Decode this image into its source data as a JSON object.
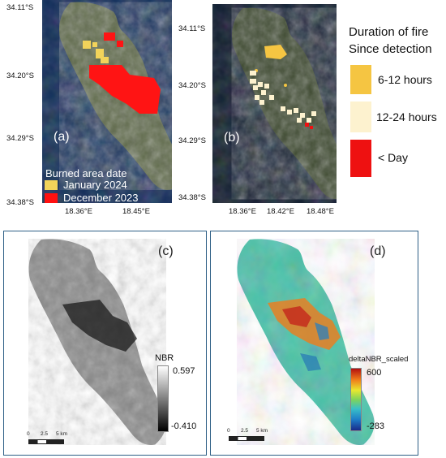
{
  "panels": {
    "a": {
      "label": "(a)",
      "lat_ticks": [
        "34.11°S",
        "34.20°S",
        "34.29°S",
        "34.38°S"
      ],
      "lon_ticks": [
        "18.36°E",
        "18.45°E"
      ],
      "legend": {
        "title": "Burned area date",
        "items": [
          {
            "label": "January 2024",
            "color": "#f2d35a"
          },
          {
            "label": "December 2023",
            "color": "#ff1010"
          }
        ]
      }
    },
    "b": {
      "label": "(b)",
      "lat_ticks": [
        "34.11°S",
        "34.20°S",
        "34.29°S",
        "34.38°S"
      ],
      "lon_ticks": [
        "18.36°E",
        "18.42°E",
        "18.48°E"
      ]
    },
    "c": {
      "label": "(c)",
      "colorbar": {
        "title": "NBR",
        "max": "0.597",
        "min": "-0.410"
      },
      "scalebar": {
        "ticks": [
          "0",
          "2.5",
          "5 km"
        ]
      }
    },
    "d": {
      "label": "(d)",
      "colorbar": {
        "title": "deltaNBR_scaled",
        "max": "600",
        "min": "-283"
      },
      "scalebar": {
        "ticks": [
          "0",
          "2.5",
          "5 km"
        ]
      }
    }
  },
  "duration_legend": {
    "title_line1": "Duration of fire",
    "title_line2": "Since detection",
    "items": [
      {
        "label": "6-12 hours",
        "color": "#f5c542"
      },
      {
        "label": "12-24 hours",
        "color": "#fdf2cf"
      },
      {
        "label": "< Day",
        "color": "#ee1111"
      }
    ]
  }
}
